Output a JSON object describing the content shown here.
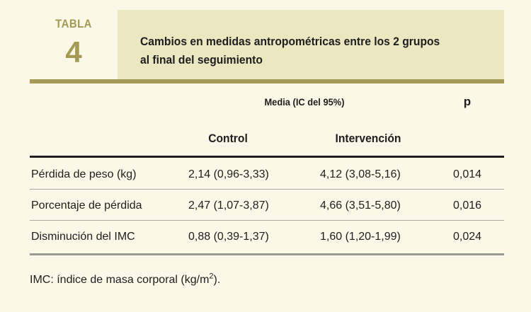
{
  "header": {
    "label": "TABLA",
    "number": "4",
    "title_line1": "Cambios en medidas antropométricas entre los 2 grupos",
    "title_line2": "al final del seguimiento"
  },
  "table": {
    "group_header": "Media (IC del 95%)",
    "p_header": "p",
    "col_control": "Control",
    "col_intervention": "Intervención",
    "rows": [
      {
        "label": "Pérdida de peso (kg)",
        "control": "2,14 (0,96-3,33)",
        "intervention": "4,12 (3,08-5,16)",
        "p": "0,014"
      },
      {
        "label": "Porcentaje de pérdida",
        "control": "2,47 (1,07-3,87)",
        "intervention": "4,66 (3,51-5,80)",
        "p": "0,016"
      },
      {
        "label": "Disminución del IMC",
        "control": "0,88 (0,39-1,37)",
        "intervention": "1,60 (1,20-1,99)",
        "p": "0,024"
      }
    ]
  },
  "footnote": {
    "text": "IMC: índice de masa corporal (kg/m",
    "sup": "2",
    "tail": ")."
  },
  "colors": {
    "background": "#fbf8e7",
    "title_band": "#ebe7c1",
    "olive": "#a49a53"
  }
}
